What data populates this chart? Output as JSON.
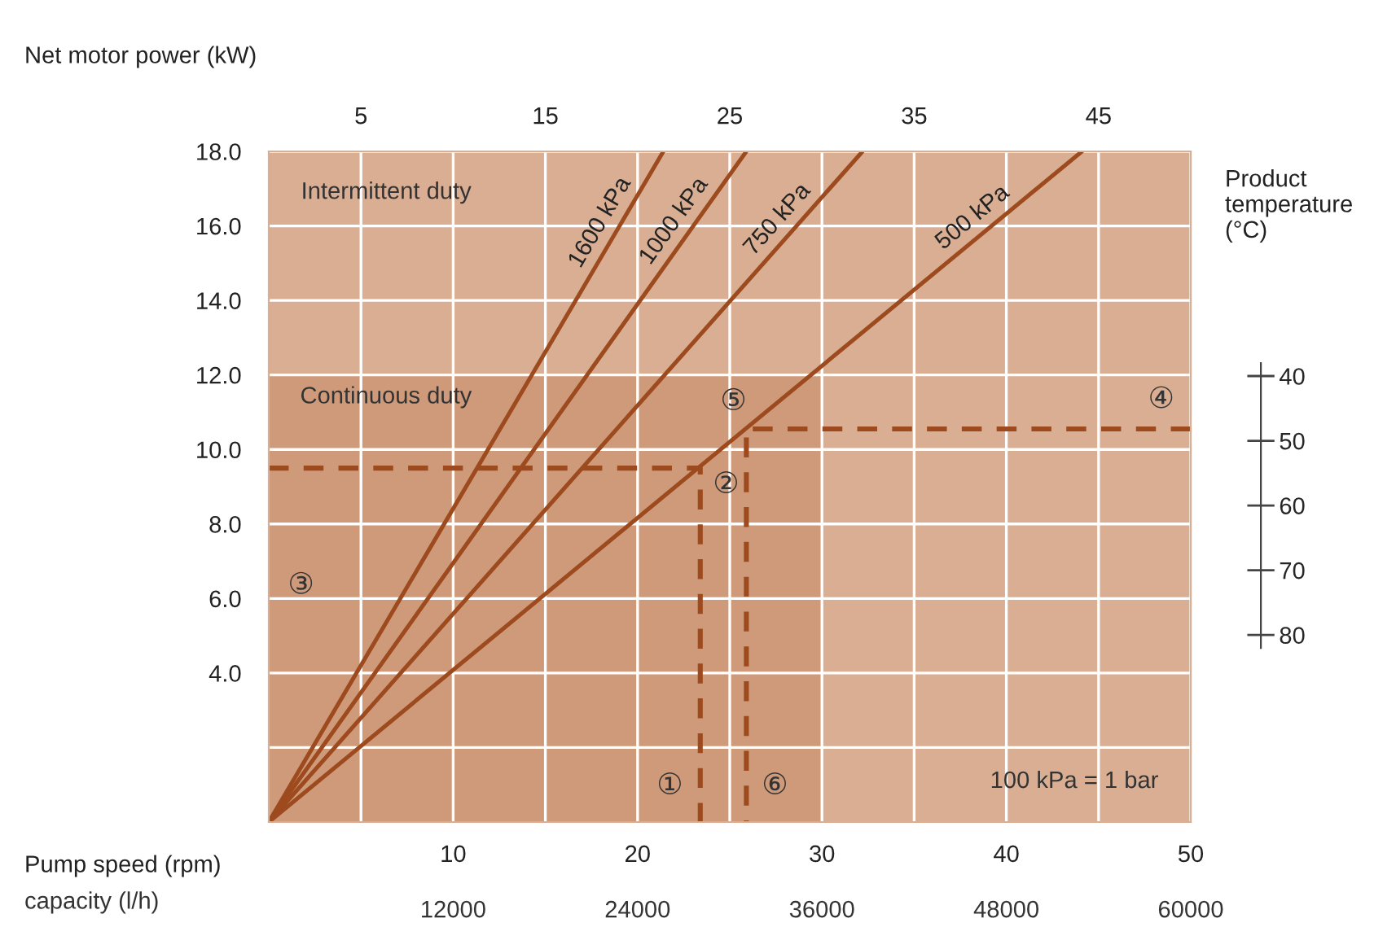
{
  "chart_data": {
    "type": "line",
    "ylabel": "Net motor power (kW)",
    "xlabel": "Pump speed (rpm)",
    "y2label": "Product temperature (°C)",
    "xlim": [
      0,
      50
    ],
    "xticks": [
      10,
      20,
      30,
      40,
      50
    ],
    "x2lim": [
      0,
      50
    ],
    "x2ticks": [
      5,
      15,
      25,
      35,
      45
    ],
    "ylim": [
      0,
      18
    ],
    "yticks": [
      {
        "value": 2,
        "label": null
      },
      {
        "value": 4,
        "label": "4.0"
      },
      {
        "value": 6,
        "label": "6.0"
      },
      {
        "value": 8,
        "label": "8.0"
      },
      {
        "value": 10,
        "label": "10.0"
      },
      {
        "value": 12,
        "label": "12.0"
      },
      {
        "value": 14,
        "label": "14.0"
      },
      {
        "value": 16,
        "label": "16.0"
      },
      {
        "value": 18,
        "label": "18.0"
      }
    ],
    "y2lim": [
      108.9,
      5.3
    ],
    "y2ticks": [
      40,
      50,
      60,
      70,
      80
    ],
    "grid": true,
    "marker": "none",
    "line_style": "solid",
    "series": [
      {
        "type": "area",
        "color": "#cf9a7a",
        "x": [
          0,
          30
        ],
        "values": [
          12,
          12
        ]
      },
      {
        "name": "1600 kPa",
        "color": "#9c4a1e",
        "x": [
          0,
          21.4
        ],
        "values": [
          0,
          18
        ]
      },
      {
        "name": "1000 kPa",
        "color": "#9c4a1e",
        "x": [
          0,
          25.9
        ],
        "values": [
          0,
          18
        ]
      },
      {
        "name": "750 kPa",
        "color": "#9c4a1e",
        "x": [
          0,
          32.2
        ],
        "values": [
          0,
          18
        ]
      },
      {
        "name": "500 kPa",
        "color": "#9c4a1e",
        "x": [
          0,
          44.1
        ],
        "values": [
          0,
          18
        ]
      },
      {
        "color": "#9c4a1e",
        "line_style": "dashed",
        "x": [
          0,
          23.4,
          23.4
        ],
        "values": [
          9.5,
          9.5,
          0
        ]
      },
      {
        "color": "#9c4a1e",
        "line_style": "dashed",
        "x": [
          50,
          25.9,
          25.9
        ],
        "values": [
          10.55,
          10.55,
          0
        ]
      }
    ],
    "annotations": [
      "Intermittent duty",
      "Continuous duty",
      "100 kPa = 1 bar",
      "①",
      "②",
      "③",
      "④",
      "⑤",
      "⑥",
      "capacity (l/h)",
      "12000",
      "24000",
      "36000",
      "48000",
      "60000"
    ]
  }
}
